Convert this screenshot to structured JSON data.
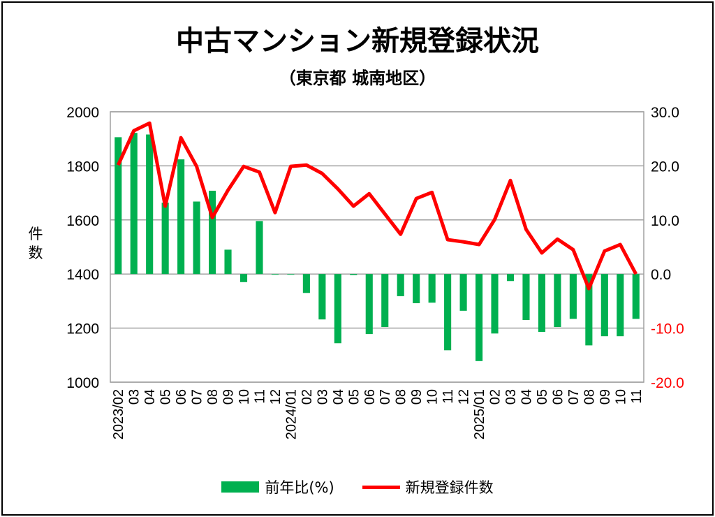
{
  "chart_data": {
    "type": "bar+line",
    "title": "中古マンション新規登録状況",
    "subtitle": "（東京都 城南地区）",
    "ylabel": "件数",
    "categories": [
      "2023/02",
      "03",
      "04",
      "05",
      "06",
      "07",
      "08",
      "09",
      "10",
      "11",
      "12",
      "2024/01",
      "02",
      "03",
      "04",
      "05",
      "06",
      "07",
      "08",
      "09",
      "10",
      "11",
      "12",
      "2025/01",
      "02",
      "03",
      "04",
      "05",
      "06",
      "07",
      "08",
      "09",
      "10",
      "11"
    ],
    "left_axis": {
      "range": [
        1000,
        2000
      ],
      "ticks": [
        "1000",
        "1200",
        "1400",
        "1600",
        "1800",
        "2000"
      ]
    },
    "right_axis": {
      "range": [
        -20,
        30
      ],
      "ticks": [
        "-20.0",
        "-10.0",
        "0.0",
        "10.0",
        "20.0",
        "30.0"
      ],
      "negative_color": "#ff0000"
    },
    "grid": true,
    "legend_position": "bottom",
    "series": [
      {
        "name": "前年比(%)",
        "type": "bar",
        "axis": "right",
        "color": "#00b050",
        "values": [
          25.3,
          26.1,
          25.8,
          13.2,
          21.2,
          13.4,
          15.4,
          4.5,
          -1.5,
          9.8,
          -0.1,
          -0.1,
          -3.5,
          -8.4,
          -12.8,
          -0.2,
          -11.1,
          -9.8,
          -4.1,
          -5.4,
          -5.3,
          -14.1,
          -6.8,
          -16.1,
          -11.0,
          -1.3,
          -8.5,
          -10.7,
          -9.8,
          -8.3,
          -13.2,
          -11.5,
          -11.5,
          -8.3
        ]
      },
      {
        "name": "新規登録件数",
        "type": "line",
        "axis": "left",
        "color": "#ff0000",
        "values": [
          1803,
          1930,
          1958,
          1651,
          1904,
          1798,
          1609,
          1710,
          1798,
          1777,
          1627,
          1798,
          1803,
          1772,
          1715,
          1651,
          1697,
          1622,
          1547,
          1679,
          1702,
          1527,
          1519,
          1509,
          1602,
          1746,
          1565,
          1478,
          1529,
          1490,
          1346,
          1485,
          1509,
          1400
        ]
      }
    ]
  },
  "legend": {
    "bar_label": "前年比(%)",
    "line_label": "新規登録件数"
  }
}
